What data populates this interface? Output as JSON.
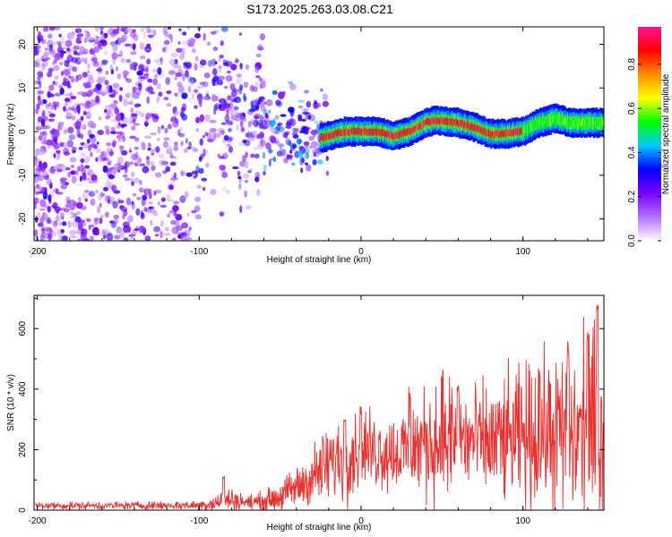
{
  "chart_data": [
    {
      "type": "heatmap",
      "title": "S173.2025.263.03.08.C21",
      "xlabel": "Height of straight line (km)",
      "ylabel": "Frequency (Hz)",
      "xlim": [
        -202,
        150
      ],
      "ylim": [
        -25,
        24
      ],
      "xticks": [
        -200,
        -100,
        0,
        100
      ],
      "yticks": [
        -20,
        -10,
        0,
        10,
        20
      ],
      "colorbar": {
        "label": "Normalized spectral amplitude",
        "range": [
          0.0,
          0.97
        ],
        "ticks": [
          0.0,
          0.2,
          0.4,
          0.6,
          0.8
        ],
        "colormap": [
          "#ffffff",
          "#b070ff",
          "#7a00ff",
          "#0000ff",
          "#00c8ff",
          "#00ff00",
          "#ffff00",
          "#ff8c00",
          "#ff0000",
          "#ff1493"
        ]
      },
      "ridge": {
        "x": [
          -200,
          -150,
          -100,
          -80,
          -60,
          -40,
          -30,
          -20,
          -10,
          0,
          10,
          20,
          30,
          40,
          45,
          50,
          60,
          70,
          80,
          90,
          100,
          110,
          120,
          130,
          140,
          150
        ],
        "frequency": [
          2,
          3,
          3,
          4,
          2,
          0,
          -2,
          -1,
          0,
          0,
          0,
          -1,
          0,
          2,
          2.5,
          2.5,
          2,
          1,
          -0.5,
          -0.5,
          0,
          2,
          3,
          2,
          2,
          2
        ]
      }
    },
    {
      "type": "line",
      "xlabel": "Height of straight line (km)",
      "ylabel": "SNR (10 * v/v)",
      "xlim": [
        -202,
        150
      ],
      "ylim": [
        0,
        710
      ],
      "xticks": [
        -200,
        -100,
        0,
        100
      ],
      "yticks": [
        0,
        200,
        400,
        600
      ],
      "color": "#e8302f",
      "envelope": {
        "x": [
          -200,
          -150,
          -100,
          -90,
          -80,
          -70,
          -60,
          -50,
          -40,
          -30,
          -20,
          -10,
          0,
          10,
          20,
          30,
          40,
          50,
          60,
          70,
          80,
          90,
          100,
          110,
          120,
          130,
          140,
          148
        ],
        "mean": [
          15,
          15,
          16,
          25,
          35,
          25,
          30,
          45,
          75,
          110,
          150,
          180,
          200,
          200,
          190,
          200,
          220,
          230,
          230,
          230,
          220,
          230,
          240,
          250,
          250,
          250,
          260,
          250
        ],
        "spread": [
          8,
          8,
          10,
          20,
          25,
          15,
          20,
          30,
          45,
          60,
          80,
          90,
          80,
          85,
          80,
          100,
          110,
          140,
          130,
          110,
          120,
          130,
          140,
          150,
          170,
          180,
          200,
          220
        ]
      },
      "peaks": [
        [
          -85,
          115
        ],
        [
          -10,
          320
        ],
        [
          0,
          345
        ],
        [
          30,
          410
        ],
        [
          50,
          480
        ],
        [
          60,
          420
        ],
        [
          110,
          470
        ],
        [
          128,
          560
        ],
        [
          140,
          610
        ],
        [
          146,
          700
        ]
      ]
    }
  ]
}
